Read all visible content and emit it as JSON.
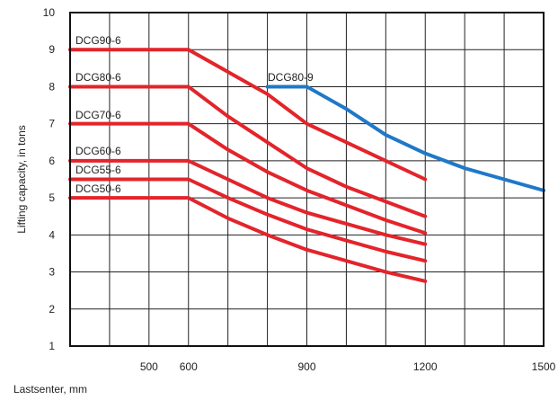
{
  "chart_data": {
    "type": "line",
    "xlabel": "Lastsenter, mm",
    "ylabel": "Lifting capacity, in tons",
    "xlim": [
      300,
      1500
    ],
    "ylim": [
      1,
      10
    ],
    "x_ticks": [
      500,
      600,
      900,
      1200,
      1500
    ],
    "y_ticks": [
      1,
      2,
      3,
      4,
      5,
      6,
      7,
      8,
      9,
      10
    ],
    "x_grid_values": [
      300,
      400,
      500,
      600,
      700,
      800,
      900,
      1000,
      1100,
      1200,
      1300,
      1400,
      1500
    ],
    "grid": true,
    "series": [
      {
        "name": "DCG90-6",
        "color": "#e3242b",
        "x": [
          300,
          600,
          800,
          900,
          1000,
          1100,
          1200
        ],
        "y": [
          9.0,
          9.0,
          7.8,
          7.0,
          6.5,
          6.0,
          5.5
        ]
      },
      {
        "name": "DCG80-6",
        "color": "#e3242b",
        "x": [
          300,
          600,
          700,
          800,
          900,
          1000,
          1100,
          1200
        ],
        "y": [
          8.0,
          8.0,
          7.2,
          6.5,
          5.8,
          5.3,
          4.9,
          4.5
        ]
      },
      {
        "name": "DCG70-6",
        "color": "#e3242b",
        "x": [
          300,
          600,
          700,
          800,
          900,
          1000,
          1100,
          1200
        ],
        "y": [
          7.0,
          7.0,
          6.3,
          5.7,
          5.2,
          4.8,
          4.4,
          4.05
        ]
      },
      {
        "name": "DCG60-6",
        "color": "#e3242b",
        "x": [
          300,
          600,
          700,
          800,
          900,
          1000,
          1100,
          1200
        ],
        "y": [
          6.0,
          6.0,
          5.5,
          5.0,
          4.6,
          4.3,
          4.0,
          3.75
        ]
      },
      {
        "name": "DCG55-6",
        "color": "#e3242b",
        "x": [
          300,
          600,
          700,
          800,
          900,
          1000,
          1100,
          1200
        ],
        "y": [
          5.5,
          5.5,
          5.0,
          4.55,
          4.15,
          3.85,
          3.55,
          3.3
        ]
      },
      {
        "name": "DCG50-6",
        "color": "#e3242b",
        "x": [
          300,
          600,
          700,
          800,
          900,
          1000,
          1100,
          1200
        ],
        "y": [
          5.0,
          5.0,
          4.45,
          4.0,
          3.6,
          3.3,
          3.0,
          2.75
        ]
      },
      {
        "name": "DCG80-9",
        "color": "#1f78c8",
        "x": [
          800,
          900,
          1000,
          1100,
          1200,
          1300,
          1400,
          1500
        ],
        "y": [
          8.0,
          8.0,
          7.4,
          6.7,
          6.2,
          5.8,
          5.5,
          5.2
        ]
      }
    ]
  }
}
